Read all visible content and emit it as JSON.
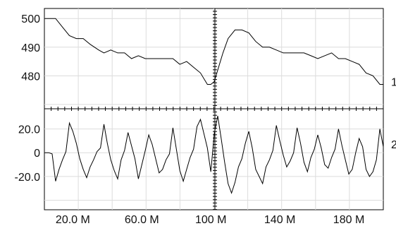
{
  "chart_data": [
    {
      "type": "line",
      "trace_label": "1",
      "y_tick_labels": [
        "500",
        "490",
        "480"
      ],
      "y_ticks": [
        500,
        490,
        480
      ],
      "ylim": [
        468.5,
        503.5
      ],
      "xlim": [
        3.5,
        200
      ],
      "grid": true,
      "x": [
        3.5,
        10,
        14,
        18,
        22,
        26,
        30,
        35,
        38,
        42,
        46,
        50,
        54,
        58,
        62,
        66,
        70,
        74,
        78,
        82,
        86,
        90,
        94,
        98,
        100,
        102,
        104,
        107,
        110,
        114,
        118,
        122,
        126,
        130,
        134,
        138,
        142,
        146,
        150,
        154,
        158,
        162,
        166,
        170,
        174,
        178,
        182,
        186,
        190,
        194,
        198,
        200
      ],
      "y": [
        500,
        500,
        497,
        494,
        493,
        493,
        491,
        489,
        488,
        489,
        488,
        488,
        486,
        487,
        486,
        486,
        486,
        486,
        486,
        484,
        485,
        483,
        481,
        477,
        477,
        478,
        482,
        488,
        493,
        496,
        496,
        495,
        492,
        490,
        490,
        489,
        488,
        488,
        488,
        488,
        487,
        486,
        487,
        488,
        486,
        486,
        485,
        484,
        481,
        480,
        477,
        477
      ]
    },
    {
      "type": "line",
      "trace_label": "2",
      "y_tick_labels": [
        "20.0",
        "0",
        "-20.0"
      ],
      "y_ticks": [
        20,
        0,
        -20
      ],
      "ylim": [
        -48,
        37
      ],
      "xlim": [
        3.5,
        200
      ],
      "grid": true,
      "x": [
        3.5,
        6,
        8,
        10,
        12,
        14,
        16,
        18,
        20,
        22,
        24,
        26,
        28,
        30,
        32,
        34,
        36,
        38,
        40,
        42,
        44,
        46,
        48,
        50,
        52,
        54,
        56,
        58,
        60,
        62,
        64,
        66,
        68,
        70,
        72,
        74,
        76,
        78,
        80,
        82,
        84,
        86,
        88,
        90,
        92,
        94,
        96,
        98,
        100,
        102,
        104,
        106,
        108,
        110,
        112,
        114,
        116,
        118,
        120,
        122,
        124,
        126,
        128,
        130,
        132,
        134,
        136,
        138,
        140,
        142,
        144,
        146,
        148,
        150,
        152,
        154,
        156,
        158,
        160,
        162,
        164,
        166,
        168,
        170,
        172,
        174,
        176,
        178,
        180,
        182,
        184,
        186,
        188,
        190,
        192,
        194,
        196,
        198,
        200
      ],
      "y": [
        0,
        0,
        -1,
        -24,
        -14,
        -6,
        1,
        25,
        18,
        8,
        -5,
        -14,
        -21,
        -12,
        -6,
        1,
        4,
        24,
        8,
        -6,
        -15,
        -22,
        -6,
        2,
        17,
        6,
        -5,
        -22,
        -10,
        2,
        15,
        7,
        -5,
        -17,
        -14,
        -6,
        -1,
        21,
        3,
        -15,
        -24,
        -14,
        -4,
        3,
        22,
        28,
        16,
        4,
        -16,
        16,
        31,
        12,
        -8,
        -26,
        -34,
        -25,
        -12,
        -5,
        8,
        18,
        4,
        -14,
        -20,
        -26,
        -12,
        -6,
        2,
        23,
        10,
        -2,
        -12,
        -7,
        0,
        21,
        8,
        -8,
        -16,
        -4,
        3,
        15,
        4,
        -10,
        -13,
        -4,
        3,
        20,
        6,
        -6,
        -18,
        -14,
        0,
        12,
        5,
        -14,
        -20,
        -16,
        -6,
        20,
        5
      ]
    }
  ],
  "x_axis": {
    "tick_labels": [
      "20.0 M",
      "60.0 M",
      "100 M",
      "140 M",
      "180 M"
    ],
    "tick_values": [
      20,
      60,
      100,
      140,
      180
    ]
  }
}
